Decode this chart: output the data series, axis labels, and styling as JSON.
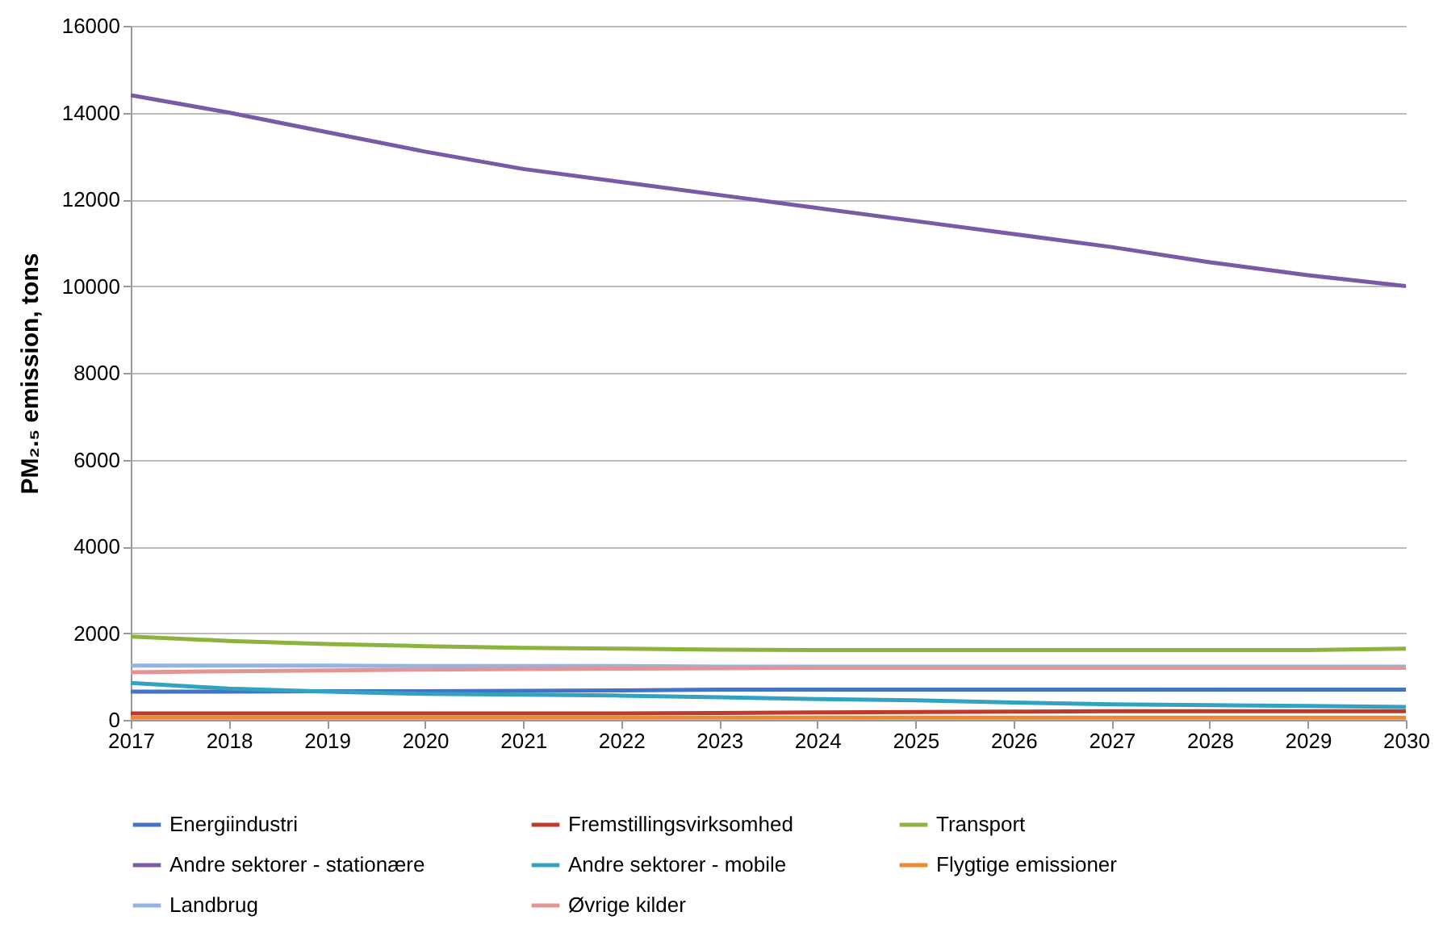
{
  "chart_data": {
    "type": "line",
    "ylabel": "PM₂.₅ emission, tons",
    "x": [
      2017,
      2018,
      2019,
      2020,
      2021,
      2022,
      2023,
      2024,
      2025,
      2026,
      2027,
      2028,
      2029,
      2030
    ],
    "xlim": [
      2017,
      2030
    ],
    "xticks": [
      2017,
      2018,
      2019,
      2020,
      2021,
      2022,
      2023,
      2024,
      2025,
      2026,
      2027,
      2028,
      2029,
      2030
    ],
    "ylim": [
      0,
      16000
    ],
    "yticks": [
      0,
      2000,
      4000,
      6000,
      8000,
      10000,
      12000,
      14000,
      16000
    ],
    "grid": "y",
    "legend": "bottom",
    "marker": "none",
    "line_style": "solid",
    "series": [
      {
        "name": "Energiindustri",
        "color": "#4472c4",
        "values": [
          650,
          650,
          660,
          660,
          670,
          680,
          700,
          700,
          700,
          700,
          700,
          700,
          700,
          700
        ]
      },
      {
        "name": "Fremstillingsvirksomhed",
        "color": "#c0392b",
        "values": [
          150,
          150,
          150,
          150,
          150,
          150,
          160,
          170,
          180,
          190,
          200,
          200,
          200,
          200
        ]
      },
      {
        "name": "Transport",
        "color": "#8cb33e",
        "values": [
          1920,
          1820,
          1750,
          1700,
          1660,
          1640,
          1620,
          1610,
          1610,
          1610,
          1610,
          1610,
          1610,
          1640
        ]
      },
      {
        "name": "Andre sektorer - stationære",
        "color": "#7a5aa6",
        "values": [
          14400,
          14000,
          13550,
          13100,
          12700,
          12400,
          12100,
          11800,
          11500,
          11200,
          10900,
          10550,
          10250,
          10000
        ]
      },
      {
        "name": "Andre sektorer - mobile",
        "color": "#31a3c0",
        "values": [
          850,
          720,
          650,
          600,
          580,
          560,
          520,
          480,
          450,
          400,
          360,
          340,
          320,
          300
        ]
      },
      {
        "name": "Flygtige emissioner",
        "color": "#f08a30",
        "values": [
          50,
          50,
          50,
          50,
          50,
          50,
          50,
          50,
          50,
          50,
          50,
          50,
          50,
          50
        ]
      },
      {
        "name": "Landbrug",
        "color": "#95b3de",
        "values": [
          1250,
          1250,
          1250,
          1240,
          1240,
          1240,
          1230,
          1230,
          1230,
          1230,
          1230,
          1230,
          1230,
          1230
        ]
      },
      {
        "name": "Øvrige kilder",
        "color": "#e39595",
        "values": [
          1100,
          1120,
          1140,
          1160,
          1170,
          1180,
          1190,
          1200,
          1200,
          1200,
          1200,
          1200,
          1200,
          1200
        ]
      }
    ]
  }
}
